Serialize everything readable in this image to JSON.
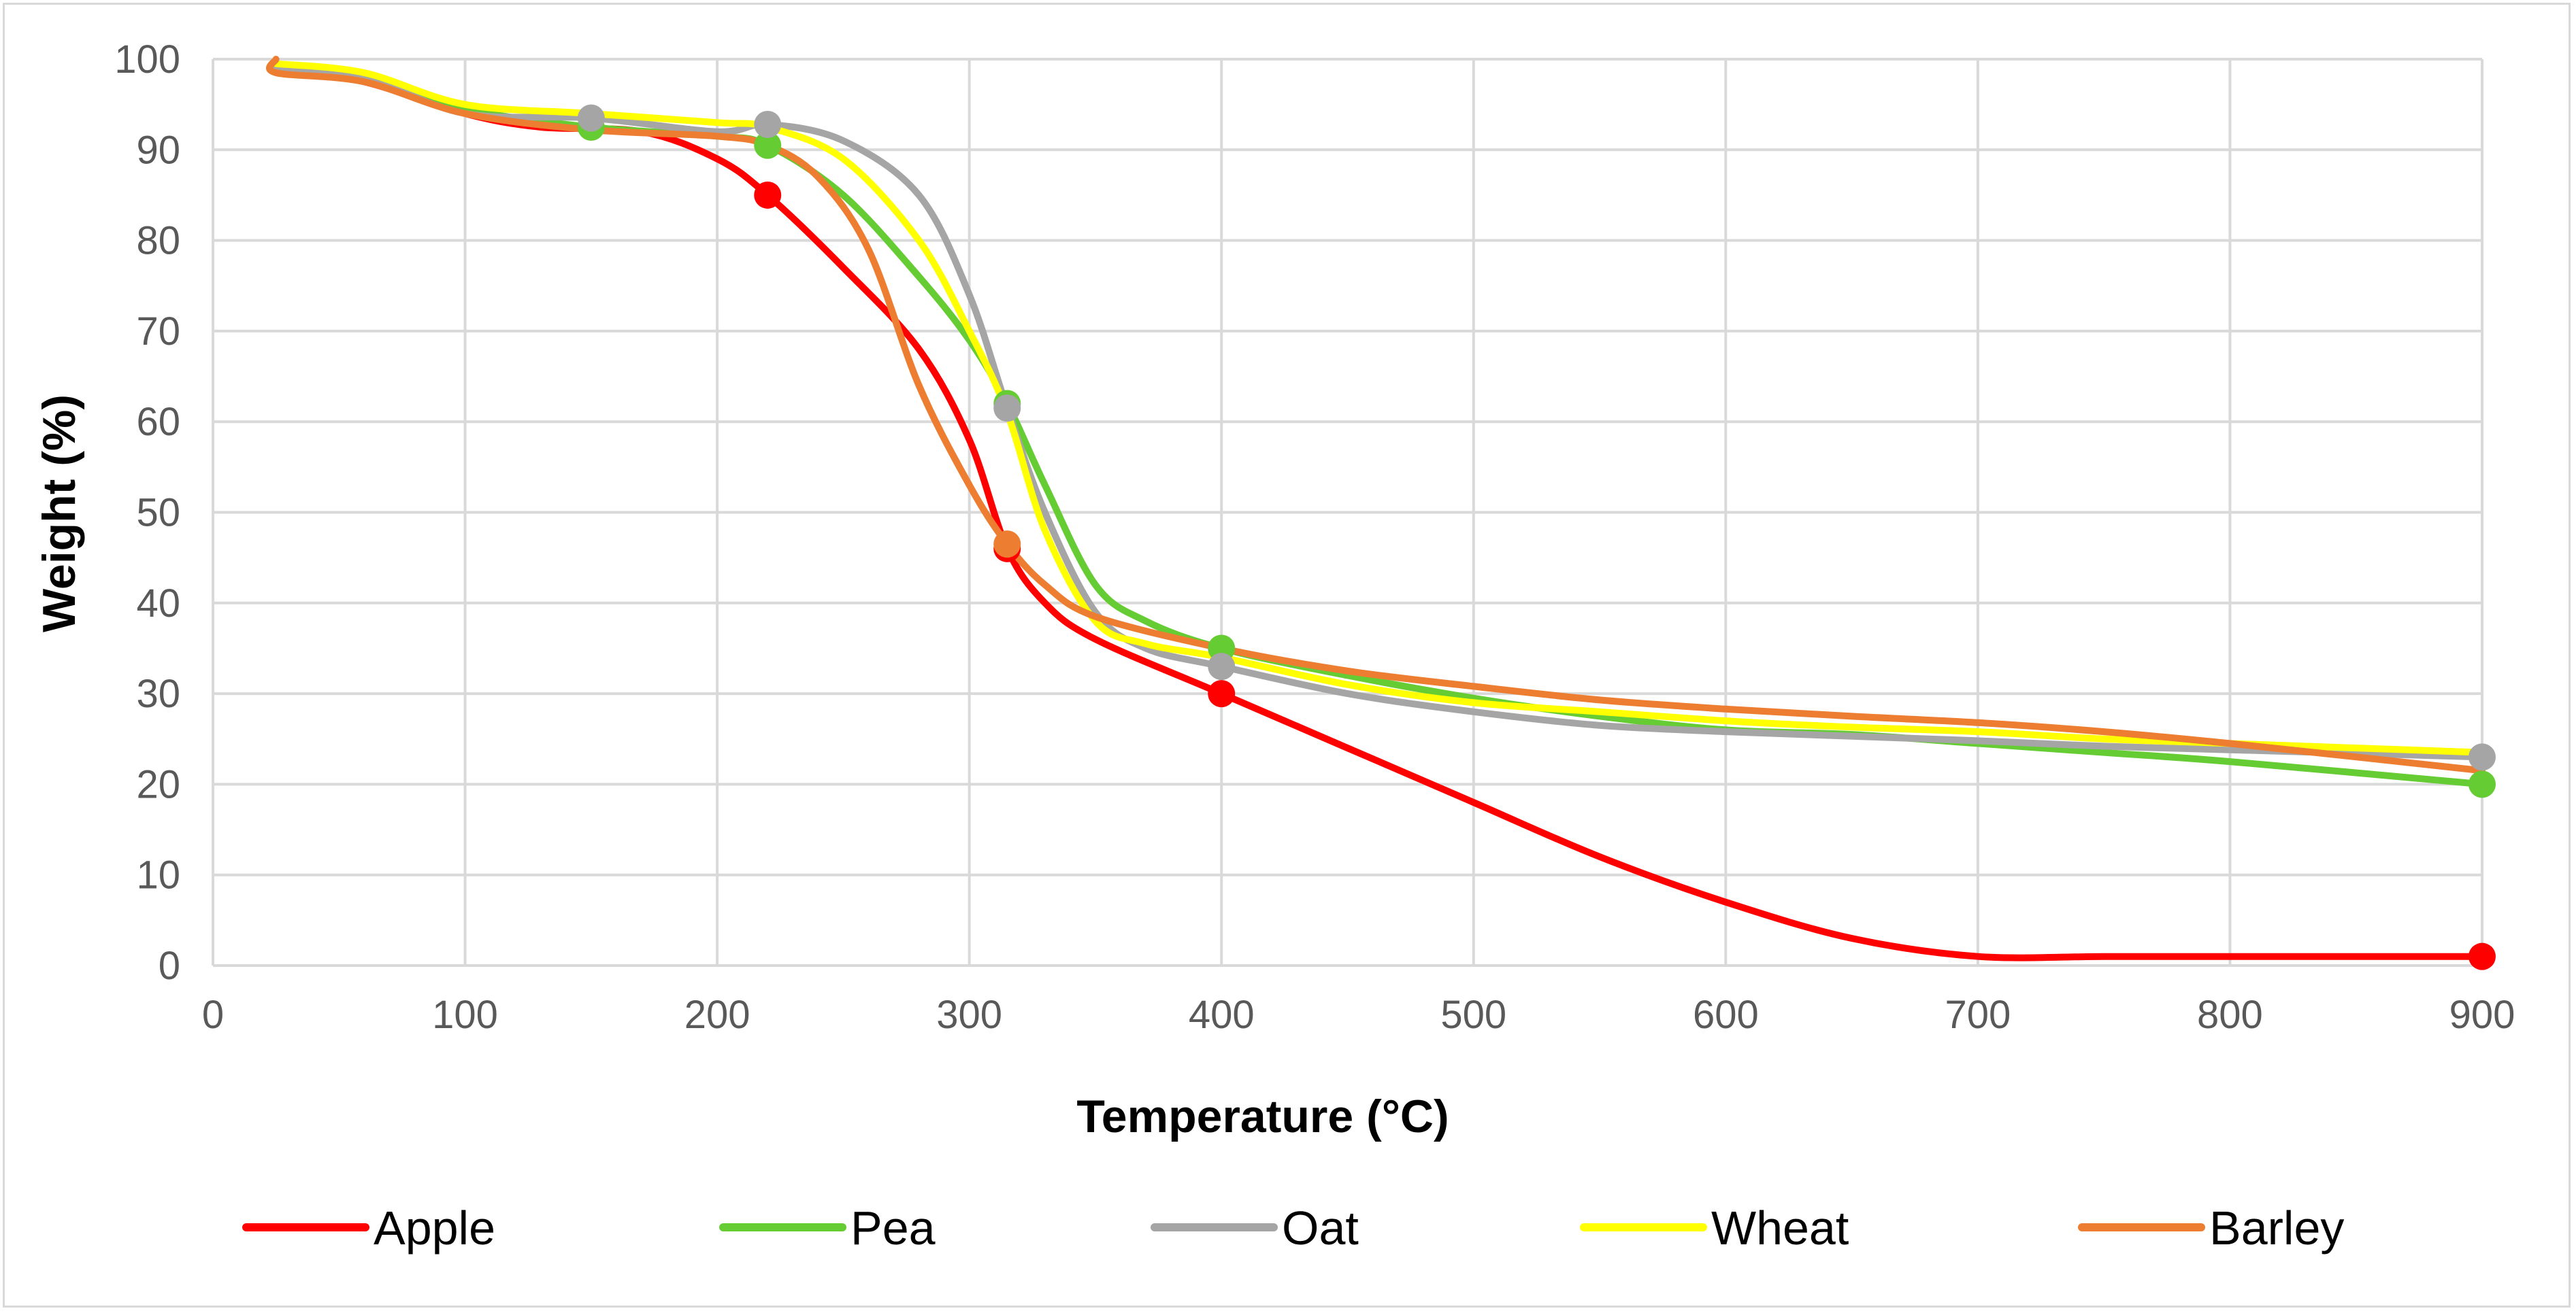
{
  "chart_data": {
    "type": "line",
    "title": "",
    "xlabel": "Temperature (°C)",
    "ylabel": "Weight (%)",
    "xlim": [
      0,
      900
    ],
    "ylim": [
      0,
      100
    ],
    "x_ticks": [
      0,
      100,
      200,
      300,
      400,
      500,
      600,
      700,
      800,
      900
    ],
    "y_ticks": [
      0,
      10,
      20,
      30,
      40,
      50,
      60,
      70,
      80,
      90,
      100
    ],
    "grid": true,
    "legend_position": "bottom",
    "series": [
      {
        "name": "Apple",
        "color": "#ff0000",
        "points": [
          [
            25,
            99
          ],
          [
            60,
            97.5
          ],
          [
            100,
            94
          ],
          [
            130,
            92.5
          ],
          [
            170,
            92
          ],
          [
            200,
            89
          ],
          [
            220,
            85
          ],
          [
            250,
            77
          ],
          [
            280,
            68
          ],
          [
            300,
            58
          ],
          [
            315,
            46
          ],
          [
            330,
            40
          ],
          [
            350,
            36
          ],
          [
            400,
            30
          ],
          [
            450,
            24
          ],
          [
            500,
            18
          ],
          [
            550,
            12
          ],
          [
            600,
            7
          ],
          [
            650,
            3
          ],
          [
            700,
            1
          ],
          [
            750,
            1
          ],
          [
            800,
            1
          ],
          [
            900,
            1
          ]
        ],
        "markers": [
          [
            220,
            85
          ],
          [
            315,
            46
          ],
          [
            400,
            30
          ],
          [
            900,
            1
          ]
        ]
      },
      {
        "name": "Pea",
        "color": "#66cc33",
        "points": [
          [
            25,
            99.5
          ],
          [
            60,
            98
          ],
          [
            100,
            94.5
          ],
          [
            150,
            92.5
          ],
          [
            200,
            91.5
          ],
          [
            220,
            90.5
          ],
          [
            250,
            85
          ],
          [
            280,
            76
          ],
          [
            300,
            69
          ],
          [
            315,
            62
          ],
          [
            330,
            53
          ],
          [
            350,
            42
          ],
          [
            370,
            38
          ],
          [
            400,
            35
          ],
          [
            450,
            32
          ],
          [
            500,
            29.5
          ],
          [
            550,
            27.5
          ],
          [
            600,
            26
          ],
          [
            650,
            25.5
          ],
          [
            700,
            24.5
          ],
          [
            750,
            23.5
          ],
          [
            800,
            22.5
          ],
          [
            900,
            20
          ]
        ],
        "markers": [
          [
            150,
            92.5
          ],
          [
            220,
            90.5
          ],
          [
            315,
            62
          ],
          [
            400,
            35
          ],
          [
            900,
            20
          ]
        ]
      },
      {
        "name": "Oat",
        "color": "#a5a5a5",
        "points": [
          [
            25,
            99
          ],
          [
            60,
            98
          ],
          [
            100,
            94
          ],
          [
            150,
            93.5
          ],
          [
            200,
            92
          ],
          [
            220,
            92.8
          ],
          [
            250,
            91
          ],
          [
            280,
            85
          ],
          [
            300,
            74
          ],
          [
            315,
            61.5
          ],
          [
            330,
            50
          ],
          [
            350,
            39
          ],
          [
            370,
            35
          ],
          [
            400,
            33
          ],
          [
            450,
            30
          ],
          [
            500,
            28
          ],
          [
            550,
            26.5
          ],
          [
            600,
            25.8
          ],
          [
            650,
            25.3
          ],
          [
            700,
            24.8
          ],
          [
            750,
            24.2
          ],
          [
            800,
            23.8
          ],
          [
            900,
            23
          ]
        ],
        "markers": [
          [
            150,
            93.5
          ],
          [
            220,
            92.8
          ],
          [
            315,
            61.5
          ],
          [
            400,
            33
          ],
          [
            900,
            23
          ]
        ]
      },
      {
        "name": "Wheat",
        "color": "#ffff00",
        "points": [
          [
            25,
            99.5
          ],
          [
            60,
            98.5
          ],
          [
            100,
            95
          ],
          [
            150,
            94
          ],
          [
            200,
            93
          ],
          [
            220,
            92.5
          ],
          [
            250,
            89
          ],
          [
            280,
            80
          ],
          [
            300,
            70
          ],
          [
            315,
            61
          ],
          [
            330,
            48
          ],
          [
            350,
            38
          ],
          [
            370,
            35.5
          ],
          [
            400,
            34
          ],
          [
            450,
            31
          ],
          [
            500,
            29
          ],
          [
            550,
            28
          ],
          [
            600,
            27
          ],
          [
            650,
            26.3
          ],
          [
            700,
            25.8
          ],
          [
            750,
            25
          ],
          [
            800,
            24.5
          ],
          [
            900,
            23.5
          ]
        ],
        "markers": []
      },
      {
        "name": "Barley",
        "color": "#ed7d31",
        "points": [
          [
            25,
            100
          ],
          [
            25,
            98.5
          ],
          [
            60,
            97.5
          ],
          [
            100,
            94
          ],
          [
            150,
            92.2
          ],
          [
            200,
            91.5
          ],
          [
            220,
            90.5
          ],
          [
            240,
            87
          ],
          [
            260,
            79
          ],
          [
            280,
            64
          ],
          [
            300,
            53
          ],
          [
            315,
            46.5
          ],
          [
            330,
            42
          ],
          [
            350,
            38.5
          ],
          [
            400,
            35
          ],
          [
            450,
            32.5
          ],
          [
            500,
            30.8
          ],
          [
            550,
            29.3
          ],
          [
            600,
            28.3
          ],
          [
            650,
            27.5
          ],
          [
            700,
            26.8
          ],
          [
            750,
            25.8
          ],
          [
            800,
            24.5
          ],
          [
            900,
            21.5
          ]
        ],
        "markers": [
          [
            315,
            46.5
          ]
        ]
      }
    ]
  }
}
